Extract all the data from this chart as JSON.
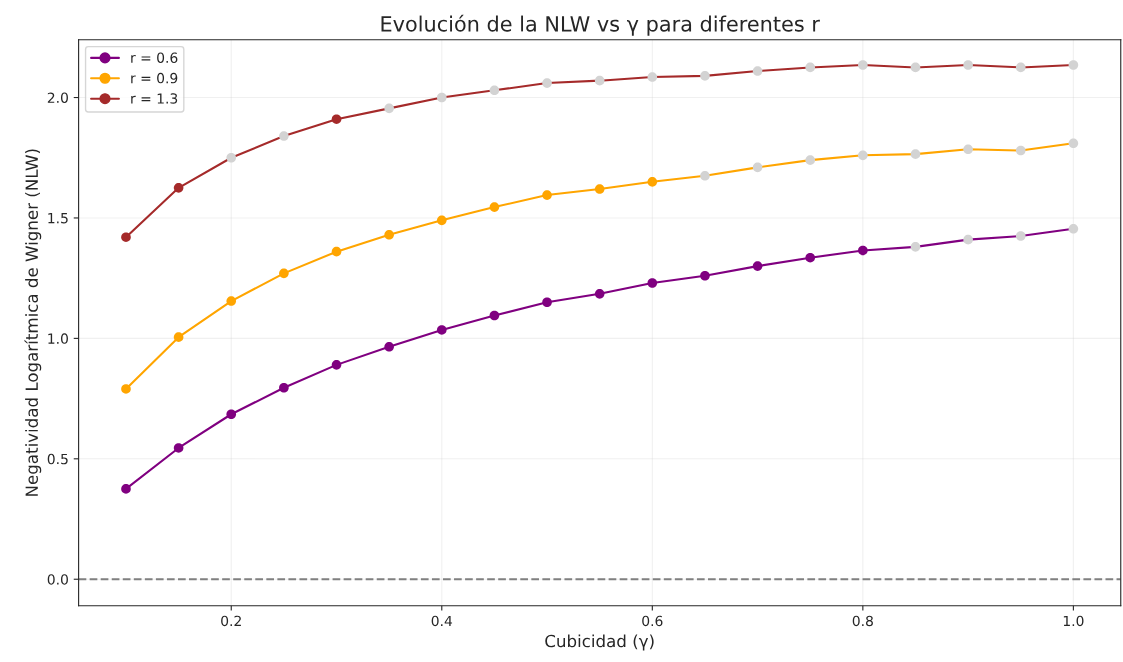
{
  "chart_data": {
    "type": "line",
    "title": "Evolución de la NLW vs γ para diferentes r",
    "xlabel": "Cubicidad (γ)",
    "ylabel": "Negatividad Logarítmica de Wigner (NLW)",
    "x": [
      0.1,
      0.15,
      0.2,
      0.25,
      0.3,
      0.35,
      0.4,
      0.45,
      0.5,
      0.55,
      0.6,
      0.65,
      0.7,
      0.75,
      0.8,
      0.85,
      0.9,
      0.95,
      1.0
    ],
    "series": [
      {
        "name": "r = 0.6",
        "color": "#800080",
        "values": [
          0.375,
          0.545,
          0.685,
          0.795,
          0.89,
          0.965,
          1.035,
          1.095,
          1.15,
          1.185,
          1.23,
          1.26,
          1.3,
          1.335,
          1.365,
          1.38,
          1.41,
          1.425,
          1.455
        ],
        "colors": [
          "#800080",
          "#800080",
          "#800080",
          "#800080",
          "#800080",
          "#800080",
          "#800080",
          "#800080",
          "#800080",
          "#800080",
          "#800080",
          "#800080",
          "#800080",
          "#800080",
          "#800080",
          "#d3d3d3",
          "#d3d3d3",
          "#d3d3d3",
          "#d3d3d3"
        ]
      },
      {
        "name": "r = 0.9",
        "color": "#ffa500",
        "values": [
          0.79,
          1.005,
          1.155,
          1.27,
          1.36,
          1.43,
          1.49,
          1.545,
          1.595,
          1.62,
          1.65,
          1.675,
          1.71,
          1.74,
          1.76,
          1.765,
          1.785,
          1.78,
          1.81
        ],
        "colors": [
          "#ffa500",
          "#ffa500",
          "#ffa500",
          "#ffa500",
          "#ffa500",
          "#ffa500",
          "#ffa500",
          "#ffa500",
          "#ffa500",
          "#ffa500",
          "#ffa500",
          "#d3d3d3",
          "#d3d3d3",
          "#d3d3d3",
          "#d3d3d3",
          "#d3d3d3",
          "#d3d3d3",
          "#d3d3d3",
          "#d3d3d3"
        ]
      },
      {
        "name": "r = 1.3",
        "color": "#a52a2a",
        "values": [
          1.42,
          1.625,
          1.75,
          1.84,
          1.91,
          1.955,
          2.0,
          2.03,
          2.06,
          2.07,
          2.085,
          2.09,
          2.11,
          2.125,
          2.135,
          2.125,
          2.135,
          2.125,
          2.135
        ],
        "colors": [
          "#a52a2a",
          "#a52a2a",
          "#d3d3d3",
          "#d3d3d3",
          "#a52a2a",
          "#d3d3d3",
          "#d3d3d3",
          "#d3d3d3",
          "#d3d3d3",
          "#d3d3d3",
          "#d3d3d3",
          "#d3d3d3",
          "#d3d3d3",
          "#d3d3d3",
          "#d3d3d3",
          "#d3d3d3",
          "#d3d3d3",
          "#d3d3d3",
          "#d3d3d3"
        ]
      }
    ],
    "xlim": [
      0.055,
      1.045
    ],
    "xticks": [
      0.2,
      0.4,
      0.6,
      0.8,
      {
        "value": 1,
        "label": "1.0"
      }
    ],
    "ylim": [
      -0.11,
      2.24
    ],
    "yticks": [
      {
        "value": 0,
        "label": "0.0"
      },
      0.5,
      {
        "value": 1,
        "label": "1.0"
      },
      1.5,
      {
        "value": 2,
        "label": "2.0"
      }
    ],
    "ref_lines": [
      {
        "axis": "y",
        "value": 0.0,
        "color": "#808080",
        "line_style": "dashed"
      }
    ],
    "grid": true,
    "legend": "upper left",
    "marker": "circle",
    "line_style": "solid"
  }
}
